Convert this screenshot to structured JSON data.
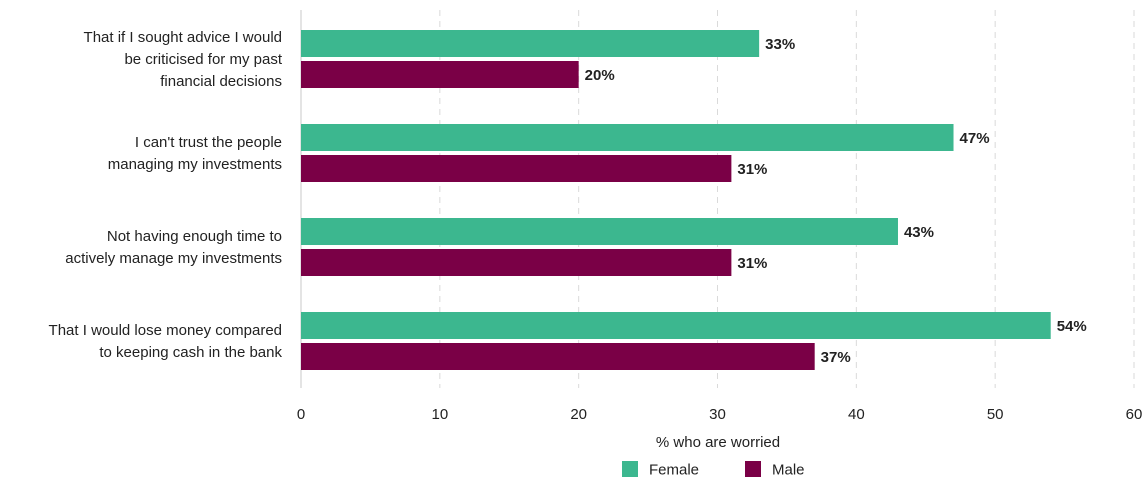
{
  "chart_data": {
    "type": "bar",
    "orientation": "horizontal",
    "categories": [
      [
        "That if I sought advice I would",
        "be criticised for my past",
        "financial decisions"
      ],
      [
        "I can't trust the people",
        "managing my investments"
      ],
      [
        "Not having enough time to",
        "actively manage my investments"
      ],
      [
        "That I would lose money compared",
        "to keeping cash in the bank"
      ]
    ],
    "series": [
      {
        "name": "Female",
        "color": "#3cb78f",
        "values": [
          33,
          47,
          43,
          54
        ],
        "labels": [
          "33%",
          "47%",
          "43%",
          "54%"
        ]
      },
      {
        "name": "Male",
        "color": "#7a0046",
        "values": [
          20,
          31,
          31,
          37
        ],
        "labels": [
          "20%",
          "31%",
          "31%",
          "37%"
        ]
      }
    ],
    "xlabel": "% who are worried",
    "xlim": [
      0,
      60
    ],
    "xticks": [
      0,
      10,
      20,
      30,
      40,
      50,
      60
    ],
    "grid": true,
    "legend_position": "bottom-center"
  }
}
